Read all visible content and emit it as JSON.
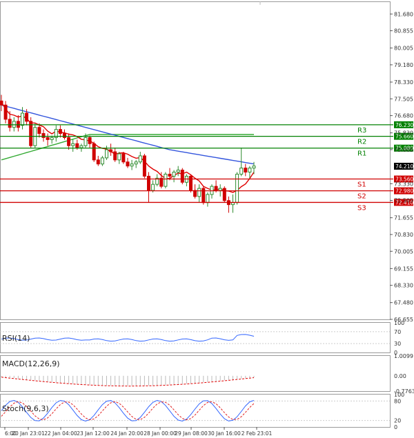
{
  "chart_data": {
    "type": "candlestick",
    "price_axis": {
      "ticks": [
        "81.680",
        "80.855",
        "80.005",
        "79.180",
        "78.330",
        "77.505",
        "76.680",
        "75.830",
        "75.005",
        "73.330",
        "72.505",
        "71.655",
        "70.830",
        "70.005",
        "69.155",
        "68.330",
        "67.480",
        "66.655"
      ],
      "ylim": [
        66.655,
        82.3
      ]
    },
    "time_axis": {
      "labels": [
        "6:00",
        "20 Jan 23:01",
        "22 Jan 04:00",
        "23 Jan 12:00",
        "24 Jan 20:00",
        "28 Jan 00:00",
        "29 Jan 08:00",
        "30 Jan 16:00",
        "2 Feb 23:01"
      ]
    },
    "current_price": "74.210",
    "levels": [
      {
        "name": "R3",
        "value": "76.230",
        "color": "#008000"
      },
      {
        "name": "R2",
        "value": "75.660",
        "color": "#008000"
      },
      {
        "name": "R1",
        "value": "75.080",
        "color": "#008000"
      },
      {
        "name": "S1",
        "value": "73.560",
        "color": "#d00000"
      },
      {
        "name": "S2",
        "value": "72.980",
        "color": "#d00000"
      },
      {
        "name": "S3",
        "value": "72.410",
        "color": "#d00000"
      }
    ],
    "candles": [
      {
        "o": 77.4,
        "h": 77.7,
        "l": 76.9,
        "c": 77.2
      },
      {
        "o": 77.2,
        "h": 77.4,
        "l": 76.3,
        "c": 76.5
      },
      {
        "o": 76.5,
        "h": 76.9,
        "l": 75.9,
        "c": 76.1
      },
      {
        "o": 76.1,
        "h": 76.6,
        "l": 75.9,
        "c": 76.4
      },
      {
        "o": 76.4,
        "h": 76.7,
        "l": 75.9,
        "c": 76.1
      },
      {
        "o": 76.2,
        "h": 77.1,
        "l": 76.0,
        "c": 76.8
      },
      {
        "o": 76.8,
        "h": 77.0,
        "l": 76.2,
        "c": 76.4
      },
      {
        "o": 76.4,
        "h": 76.6,
        "l": 75.1,
        "c": 75.2
      },
      {
        "o": 75.2,
        "h": 76.3,
        "l": 75.1,
        "c": 76.1
      },
      {
        "o": 76.1,
        "h": 76.3,
        "l": 75.6,
        "c": 75.8
      },
      {
        "o": 75.8,
        "h": 76.0,
        "l": 75.4,
        "c": 75.6
      },
      {
        "o": 75.6,
        "h": 75.8,
        "l": 75.2,
        "c": 75.5
      },
      {
        "o": 75.5,
        "h": 75.7,
        "l": 75.3,
        "c": 75.6
      },
      {
        "o": 75.6,
        "h": 76.2,
        "l": 75.4,
        "c": 76.0
      },
      {
        "o": 76.0,
        "h": 76.2,
        "l": 75.6,
        "c": 75.8
      },
      {
        "o": 75.8,
        "h": 76.0,
        "l": 75.5,
        "c": 75.6
      },
      {
        "o": 75.6,
        "h": 75.8,
        "l": 75.0,
        "c": 75.2
      },
      {
        "o": 75.2,
        "h": 75.5,
        "l": 74.9,
        "c": 75.3
      },
      {
        "o": 75.3,
        "h": 75.5,
        "l": 75.0,
        "c": 75.1
      },
      {
        "o": 75.1,
        "h": 75.3,
        "l": 74.9,
        "c": 75.2
      },
      {
        "o": 75.2,
        "h": 75.8,
        "l": 75.1,
        "c": 75.6
      },
      {
        "o": 75.6,
        "h": 75.7,
        "l": 75.1,
        "c": 75.3
      },
      {
        "o": 75.3,
        "h": 75.4,
        "l": 74.4,
        "c": 74.5
      },
      {
        "o": 74.5,
        "h": 74.7,
        "l": 74.2,
        "c": 74.3
      },
      {
        "o": 74.3,
        "h": 74.7,
        "l": 74.2,
        "c": 74.6
      },
      {
        "o": 74.6,
        "h": 75.2,
        "l": 74.5,
        "c": 75.0
      },
      {
        "o": 75.0,
        "h": 75.3,
        "l": 74.7,
        "c": 74.9
      },
      {
        "o": 74.9,
        "h": 75.1,
        "l": 74.4,
        "c": 74.5
      },
      {
        "o": 74.5,
        "h": 74.9,
        "l": 74.3,
        "c": 74.8
      },
      {
        "o": 74.8,
        "h": 74.9,
        "l": 74.3,
        "c": 74.4
      },
      {
        "o": 74.4,
        "h": 74.6,
        "l": 74.1,
        "c": 74.2
      },
      {
        "o": 74.2,
        "h": 74.5,
        "l": 74.0,
        "c": 74.3
      },
      {
        "o": 74.3,
        "h": 74.5,
        "l": 74.1,
        "c": 74.4
      },
      {
        "o": 74.4,
        "h": 74.9,
        "l": 74.3,
        "c": 74.7
      },
      {
        "o": 74.7,
        "h": 74.8,
        "l": 73.6,
        "c": 73.7
      },
      {
        "o": 73.7,
        "h": 73.9,
        "l": 72.4,
        "c": 73.0
      },
      {
        "o": 73.0,
        "h": 73.5,
        "l": 72.9,
        "c": 73.3
      },
      {
        "o": 73.3,
        "h": 73.8,
        "l": 73.2,
        "c": 73.6
      },
      {
        "o": 73.6,
        "h": 73.9,
        "l": 73.1,
        "c": 73.2
      },
      {
        "o": 73.2,
        "h": 73.9,
        "l": 73.1,
        "c": 73.8
      },
      {
        "o": 73.8,
        "h": 74.1,
        "l": 73.5,
        "c": 73.7
      },
      {
        "o": 73.7,
        "h": 74.0,
        "l": 73.4,
        "c": 73.9
      },
      {
        "o": 73.9,
        "h": 74.2,
        "l": 73.7,
        "c": 74.0
      },
      {
        "o": 74.0,
        "h": 74.1,
        "l": 73.3,
        "c": 73.4
      },
      {
        "o": 73.4,
        "h": 73.8,
        "l": 73.2,
        "c": 73.7
      },
      {
        "o": 73.7,
        "h": 73.8,
        "l": 72.9,
        "c": 73.0
      },
      {
        "o": 73.0,
        "h": 73.3,
        "l": 72.6,
        "c": 72.7
      },
      {
        "o": 72.7,
        "h": 73.3,
        "l": 72.4,
        "c": 73.1
      },
      {
        "o": 73.1,
        "h": 73.2,
        "l": 72.3,
        "c": 72.4
      },
      {
        "o": 72.4,
        "h": 72.9,
        "l": 72.2,
        "c": 72.8
      },
      {
        "o": 72.8,
        "h": 73.3,
        "l": 72.6,
        "c": 73.2
      },
      {
        "o": 73.2,
        "h": 73.5,
        "l": 72.9,
        "c": 73.0
      },
      {
        "o": 73.0,
        "h": 73.3,
        "l": 72.7,
        "c": 73.1
      },
      {
        "o": 73.1,
        "h": 73.2,
        "l": 72.4,
        "c": 72.5
      },
      {
        "o": 72.5,
        "h": 72.7,
        "l": 71.9,
        "c": 72.3
      },
      {
        "o": 72.3,
        "h": 72.8,
        "l": 71.9,
        "c": 72.4
      },
      {
        "o": 72.4,
        "h": 73.9,
        "l": 72.3,
        "c": 73.8
      },
      {
        "o": 73.8,
        "h": 75.1,
        "l": 73.7,
        "c": 74.1
      },
      {
        "o": 74.1,
        "h": 74.3,
        "l": 73.7,
        "c": 73.9
      },
      {
        "o": 73.9,
        "h": 74.2,
        "l": 73.6,
        "c": 74.1
      },
      {
        "o": 74.1,
        "h": 74.4,
        "l": 73.8,
        "c": 74.2
      }
    ],
    "indicators": [
      {
        "name": "RSI(14)",
        "ticks": [
          "100",
          "70",
          "30",
          "0"
        ]
      },
      {
        "name": "MACD(12,26,9)",
        "ticks": [
          "1.0099",
          "0.00",
          "-0.7763"
        ]
      },
      {
        "name": "Stoch(9,6,3)",
        "ticks": [
          "100",
          "80",
          "20",
          "0"
        ]
      }
    ],
    "colors": {
      "bull": "#2e8b2e",
      "bear": "#d00000",
      "ma_fast": "#e00000",
      "ma_mid": "#3355dd",
      "ma_slow": "#33aa33",
      "rsi": "#3366ff",
      "stoch_k": "#3366ff",
      "stoch_d": "#e02020"
    }
  }
}
